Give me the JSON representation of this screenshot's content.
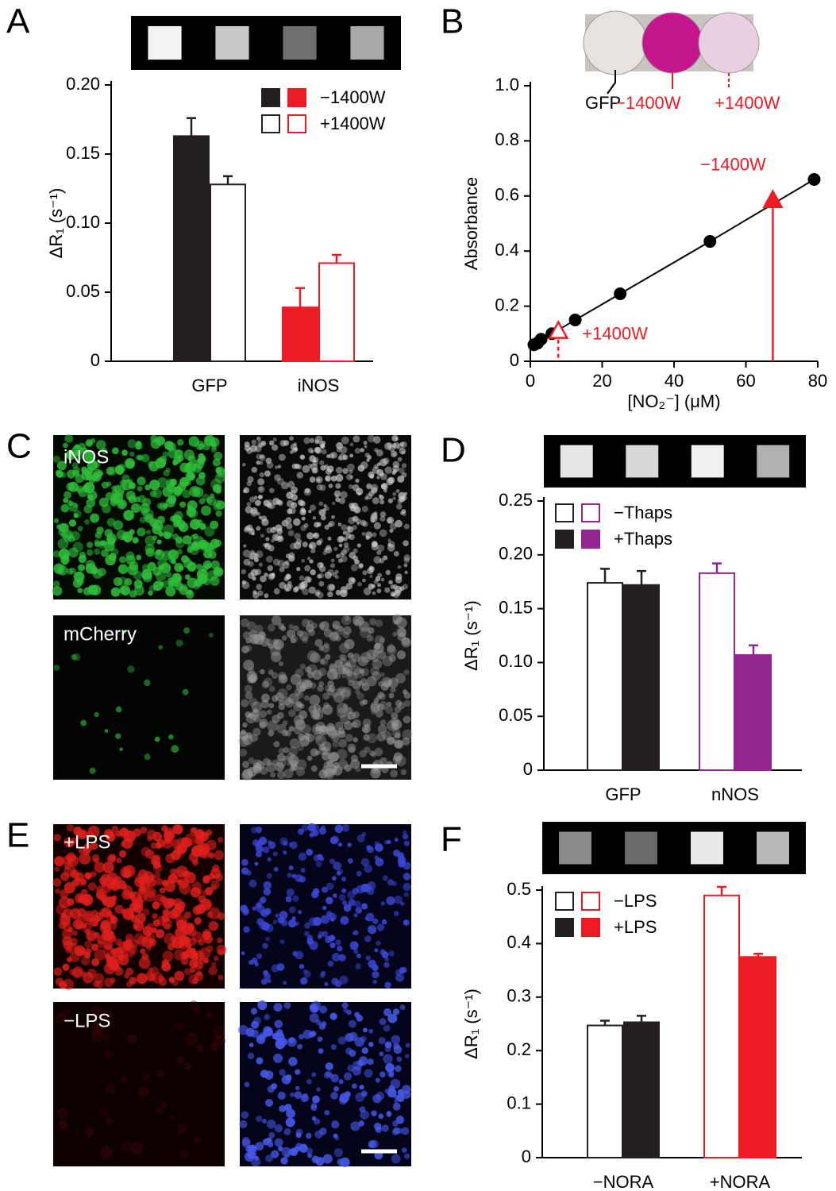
{
  "chart_data": [
    {
      "type": "bar",
      "panel": "A",
      "y_label": "ΔR₁ (s⁻¹)",
      "categories": [
        "GFP",
        "iNOS"
      ],
      "category_colors": [
        "#231f20",
        "#ed1c24"
      ],
      "series": [
        {
          "name": "−1400W",
          "filled": true,
          "values": [
            0.163,
            0.039
          ],
          "errors": [
            0.013,
            0.014
          ]
        },
        {
          "name": "+1400W",
          "filled": false,
          "values": [
            0.128,
            0.071
          ],
          "errors": [
            0.006,
            0.006
          ]
        }
      ],
      "ylim": [
        0,
        0.2
      ],
      "yticks": [
        0,
        0.05,
        {
          "value": 0.1,
          "label": "0.10"
        },
        0.15,
        {
          "value": 0.2,
          "label": "0.20"
        }
      ]
    },
    {
      "type": "line",
      "panel": "B",
      "x_label": "[NO₂⁻] (μM)",
      "y_label": "Absorbance",
      "color": "#000000",
      "x": [
        1,
        2,
        3,
        6,
        12.5,
        25,
        50,
        79
      ],
      "values": [
        0.06,
        0.066,
        0.08,
        0.1,
        0.15,
        0.245,
        0.435,
        0.66
      ],
      "annotation_color": "#ed1c24",
      "annotations": [
        {
          "text": "−1400W",
          "x": 67.5,
          "y": 0.58,
          "filled": true
        },
        {
          "text": "+1400W",
          "x": 7.8,
          "y": 0.105,
          "filled": false
        }
      ],
      "well_labels": [
        "GFP",
        "−1400W",
        "+1400W"
      ],
      "xlim": [
        0,
        80
      ],
      "xticks": [
        0,
        20,
        40,
        60,
        80
      ],
      "ylim": [
        0,
        1
      ],
      "yticks": [
        0,
        0.2,
        0.4,
        0.6,
        0.8,
        {
          "value": 1,
          "label": "1.0"
        }
      ]
    },
    {
      "type": "bar",
      "panel": "D",
      "y_label": "ΔR₁ (s⁻¹)",
      "categories": [
        "GFP",
        "nNOS"
      ],
      "category_colors": [
        "#231f20",
        "#92278f"
      ],
      "series": [
        {
          "name": "−Thaps",
          "filled": false,
          "values": [
            0.174,
            0.183
          ],
          "errors": [
            0.013,
            0.009
          ]
        },
        {
          "name": "+Thaps",
          "filled": true,
          "values": [
            0.172,
            0.107
          ],
          "errors": [
            0.013,
            0.009
          ]
        }
      ],
      "ylim": [
        0,
        0.25
      ],
      "yticks": [
        0,
        0.05,
        {
          "value": 0.1,
          "label": "0.10"
        },
        0.15,
        {
          "value": 0.2,
          "label": "0.20"
        },
        0.25
      ]
    },
    {
      "type": "bar",
      "panel": "F",
      "y_label": "ΔR₁ (s⁻¹)",
      "categories": [
        "−NORA",
        "+NORA"
      ],
      "category_colors": [
        "#231f20",
        "#ed1c24"
      ],
      "series": [
        {
          "name": "−LPS",
          "filled": false,
          "values": [
            0.247,
            0.49
          ],
          "errors": [
            0.009,
            0.016
          ]
        },
        {
          "name": "+LPS",
          "filled": true,
          "values": [
            0.253,
            0.375
          ],
          "errors": [
            0.012,
            0.006
          ]
        }
      ],
      "ylim": [
        0,
        0.5
      ],
      "yticks": [
        0,
        0.1,
        0.2,
        0.3,
        0.4,
        0.5
      ]
    }
  ],
  "images": [
    {
      "panel": "C",
      "labels": [
        "iNOS",
        "mCherry"
      ]
    },
    {
      "panel": "E",
      "labels": [
        "+LPS",
        "−LPS"
      ]
    }
  ]
}
